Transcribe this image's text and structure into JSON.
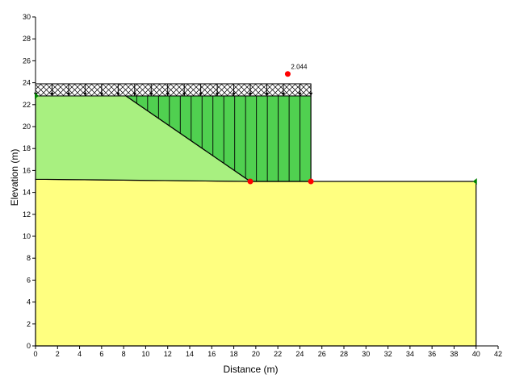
{
  "chart_data": {
    "type": "diagram",
    "xlabel": "Distance (m)",
    "ylabel": "Elevation (m)",
    "xlim": [
      0,
      42
    ],
    "ylim": [
      0,
      30
    ],
    "x_ticks": [
      0,
      2,
      4,
      6,
      8,
      10,
      12,
      14,
      16,
      18,
      20,
      22,
      24,
      26,
      28,
      30,
      32,
      34,
      36,
      38,
      40,
      42
    ],
    "y_ticks": [
      0,
      2,
      4,
      6,
      8,
      10,
      12,
      14,
      16,
      18,
      20,
      22,
      24,
      26,
      28,
      30
    ],
    "regions": [
      {
        "id": "foundation",
        "color": "#ffff80",
        "points": [
          [
            0,
            0
          ],
          [
            40,
            0
          ],
          [
            40,
            15
          ],
          [
            25,
            15
          ],
          [
            19.5,
            15
          ],
          [
            0,
            15.2
          ]
        ]
      },
      {
        "id": "embankment",
        "color": "#a8f080",
        "points": [
          [
            0,
            15.2
          ],
          [
            19.5,
            15
          ],
          [
            8.2,
            22.8
          ],
          [
            0,
            22.8
          ]
        ]
      },
      {
        "id": "fill",
        "color": "#50d050",
        "points": [
          [
            19.5,
            15
          ],
          [
            25,
            15
          ],
          [
            25,
            22.8
          ],
          [
            8.2,
            22.8
          ]
        ]
      }
    ],
    "surcharge": {
      "x_start": 0,
      "x_end": 25,
      "y_bottom": 22.8,
      "y_top": 23.9,
      "arrow_x": [
        0,
        1.5,
        3,
        4.5,
        6,
        7.5,
        9,
        10.5,
        12,
        13.5,
        15,
        16.5,
        18,
        19.5,
        21,
        22.5,
        24,
        25
      ]
    },
    "slices": {
      "x_start": 8.2,
      "x_end": 25,
      "count": 17
    },
    "slip_points": [
      [
        19.5,
        15
      ],
      [
        25,
        15
      ]
    ],
    "slip_center": [
      22.9,
      24.8
    ],
    "factor_of_safety": "2.044",
    "piezometric_points": [
      [
        0,
        22.8
      ],
      [
        40,
        15
      ]
    ],
    "colors": {
      "outline": "#000000",
      "slip_point": "#ff0000",
      "piezo_marker": "#008000"
    }
  }
}
